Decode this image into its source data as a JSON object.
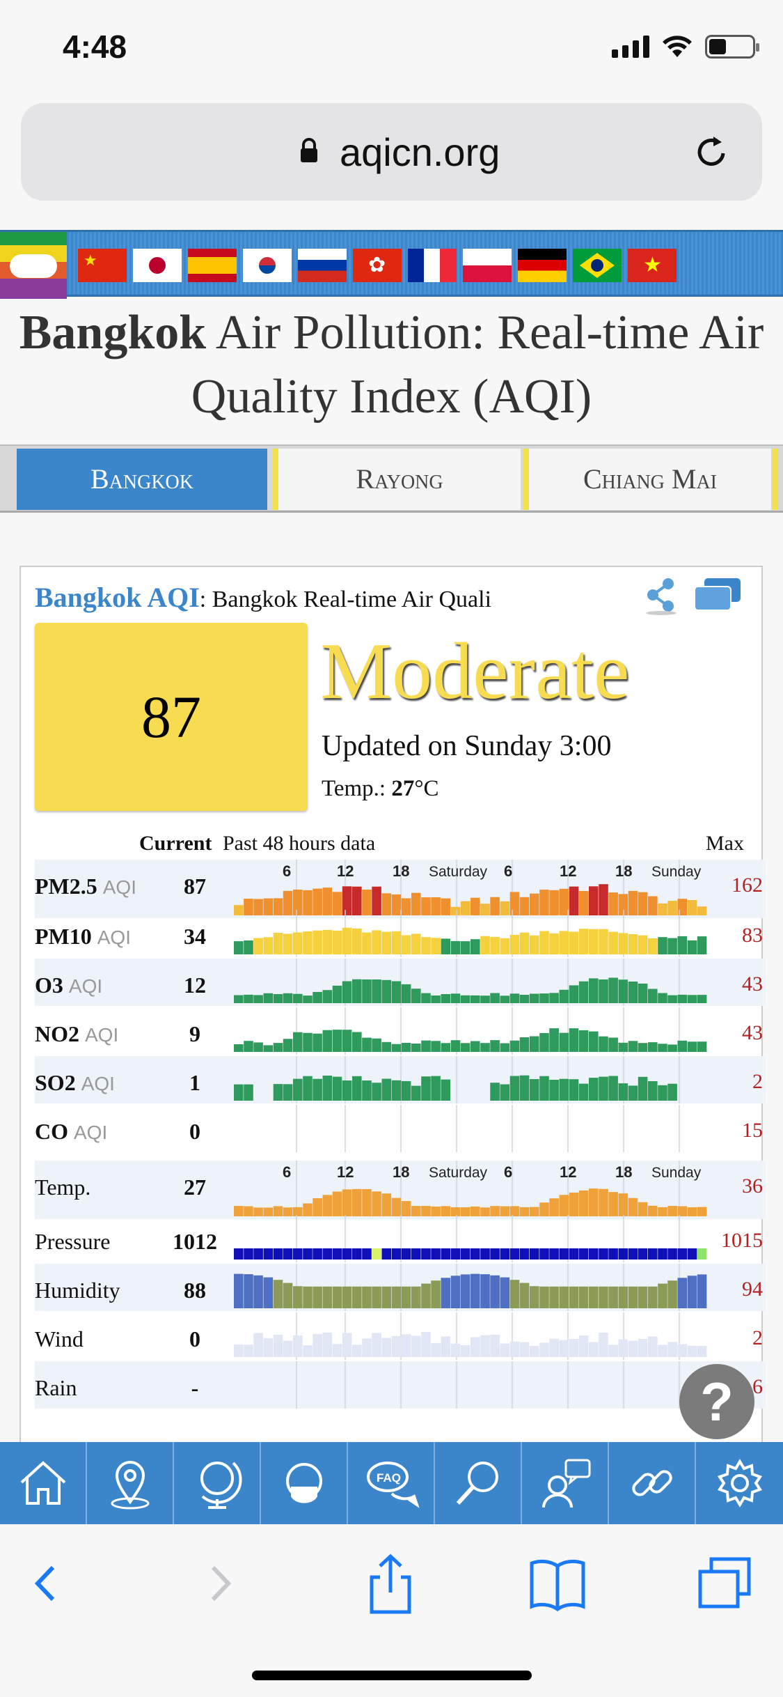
{
  "status": {
    "time": "4:48"
  },
  "browser": {
    "url": "aqicn.org"
  },
  "page_title": {
    "city": "Bangkok",
    "rest": "Air Pollution: Real-time Air Quality Index (AQI)"
  },
  "tabs": [
    {
      "label": "Bangkok",
      "active": true
    },
    {
      "label": "Rayong",
      "active": false
    },
    {
      "label": "Chiang Mai",
      "active": false
    }
  ],
  "widget": {
    "heading_name": "Bangkok AQI",
    "heading_rest": ": Bangkok Real-time Air Quali",
    "aqi": "87",
    "level": "Moderate",
    "level_color": "#f7dc52",
    "updated": "Updated on Sunday 3:00",
    "temp_label": "Temp.: ",
    "temp_value": "27",
    "temp_unit": "°C",
    "col_current": "Current",
    "col_past": "Past 48 hours data",
    "col_max": "Max",
    "axis_ticks": [
      "6",
      "12",
      "18",
      "Saturday",
      "6",
      "12",
      "18",
      "Sunday"
    ]
  },
  "rows": [
    {
      "name": "PM2.5",
      "suffix": "AQI",
      "current": "87",
      "max": "162"
    },
    {
      "name": "PM10",
      "suffix": "AQI",
      "current": "34",
      "max": "83"
    },
    {
      "name": "O3",
      "suffix": "AQI",
      "current": "12",
      "max": "43"
    },
    {
      "name": "NO2",
      "suffix": "AQI",
      "current": "9",
      "max": "43"
    },
    {
      "name": "SO2",
      "suffix": "AQI",
      "current": "1",
      "max": "2"
    },
    {
      "name": "CO",
      "suffix": "AQI",
      "current": "0",
      "max": "15"
    },
    {
      "name": "Temp.",
      "suffix": "",
      "current": "27",
      "max": "36"
    },
    {
      "name": "Pressure",
      "suffix": "",
      "current": "1012",
      "max": "1015"
    },
    {
      "name": "Humidity",
      "suffix": "",
      "current": "88",
      "max": "94"
    },
    {
      "name": "Wind",
      "suffix": "",
      "current": "0",
      "max": "2"
    },
    {
      "name": "Rain",
      "suffix": "",
      "current": "-",
      "max": "6"
    }
  ],
  "site_nav": [
    "home-icon",
    "map-pin-icon",
    "globe-icon",
    "mask-icon",
    "faq-icon",
    "search-icon",
    "forum-icon",
    "link-icon",
    "gear-icon"
  ],
  "help_label": "?",
  "colors": {
    "accent": "#3b85ca",
    "moderate": "#f7dc52",
    "good": "#2e9a5c",
    "unhealthy": "#c62a2a"
  }
}
